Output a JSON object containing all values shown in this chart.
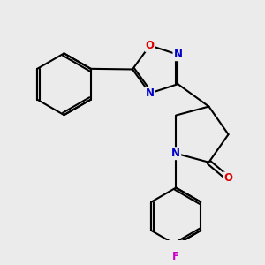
{
  "bg_color": "#ebebeb",
  "bond_color": "#000000",
  "bond_width": 1.5,
  "dbo": 0.018,
  "atom_colors": {
    "N": "#0000cc",
    "O": "#dd0000",
    "F": "#cc00cc"
  },
  "font_size": 8.5
}
